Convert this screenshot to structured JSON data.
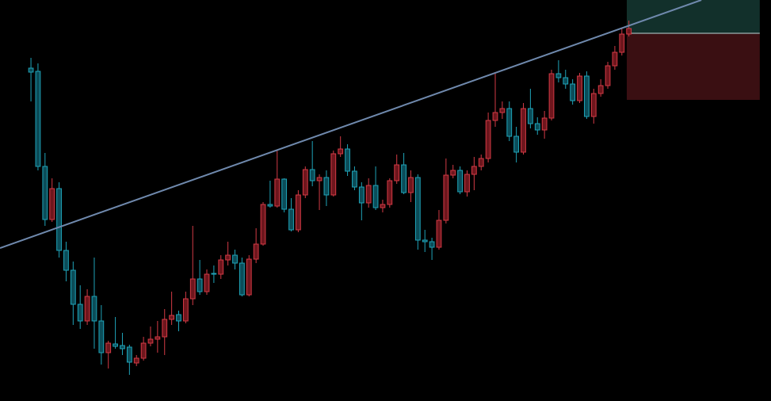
{
  "chart_data": {
    "type": "candlestick",
    "xlim": [
      -4.4,
      105.2
    ],
    "ylim": [
      0,
      506
    ],
    "up_color": "#d23a45",
    "up_fill": "#6e161d",
    "down_color": "#1fa3b8",
    "down_fill": "#0b4d59",
    "open": [
      420,
      416,
      296,
      229,
      268,
      190,
      165,
      122,
      101,
      132,
      101,
      61,
      72,
      70,
      68,
      48,
      54,
      73,
      78,
      81,
      103,
      109,
      101,
      129,
      154,
      138,
      161,
      160,
      178,
      184,
      174,
      134,
      179,
      198,
      248,
      246,
      280,
      242,
      216,
      260,
      292,
      278,
      282,
      260,
      312,
      318,
      290,
      270,
      250,
      272,
      244,
      248,
      278,
      298,
      263,
      282,
      203,
      201,
      194,
      228,
      285,
      291,
      264,
      286,
      296,
      306,
      354,
      364,
      369,
      334,
      314,
      369,
      350,
      342,
      357,
      413,
      408,
      400,
      379,
      410,
      359,
      388,
      398,
      423,
      440,
      463
    ],
    "high": [
      433,
      426,
      313,
      281,
      276,
      201,
      176,
      146,
      141,
      181,
      121,
      76,
      106,
      86,
      71,
      58,
      81,
      94,
      101,
      116,
      138,
      114,
      138,
      221,
      178,
      166,
      171,
      184,
      201,
      191,
      181,
      184,
      218,
      251,
      278,
      316,
      281,
      256,
      266,
      296,
      328,
      286,
      291,
      316,
      334,
      324,
      296,
      276,
      281,
      296,
      254,
      281,
      311,
      313,
      291,
      286,
      216,
      206,
      241,
      306,
      298,
      296,
      291,
      308,
      311,
      364,
      414,
      378,
      378,
      346,
      376,
      394,
      358,
      366,
      418,
      430,
      418,
      406,
      414,
      416,
      394,
      406,
      428,
      448,
      471,
      480
    ],
    "low": [
      378,
      291,
      221,
      226,
      181,
      151,
      96,
      91,
      96,
      66,
      46,
      41,
      66,
      58,
      33,
      44,
      51,
      69,
      61,
      58,
      96,
      88,
      98,
      121,
      134,
      134,
      149,
      154,
      171,
      166,
      132,
      132,
      174,
      196,
      244,
      244,
      238,
      214,
      213,
      256,
      271,
      241,
      246,
      258,
      308,
      284,
      266,
      228,
      244,
      241,
      238,
      244,
      274,
      261,
      251,
      191,
      188,
      178,
      191,
      224,
      281,
      261,
      258,
      266,
      291,
      301,
      346,
      356,
      328,
      301,
      311,
      344,
      336,
      331,
      354,
      402,
      394,
      374,
      376,
      356,
      350,
      384,
      394,
      418,
      436,
      460
    ],
    "close": [
      415,
      296,
      229,
      268,
      190,
      165,
      122,
      101,
      132,
      101,
      61,
      73,
      69,
      66,
      49,
      54,
      73,
      78,
      81,
      103,
      108,
      101,
      129,
      154,
      138,
      160,
      160,
      178,
      184,
      174,
      134,
      179,
      198,
      248,
      246,
      280,
      242,
      216,
      260,
      292,
      278,
      282,
      260,
      312,
      318,
      290,
      270,
      250,
      272,
      244,
      248,
      278,
      298,
      263,
      282,
      203,
      201,
      194,
      228,
      285,
      291,
      264,
      286,
      296,
      306,
      354,
      364,
      369,
      334,
      314,
      369,
      350,
      342,
      357,
      413,
      408,
      400,
      379,
      410,
      359,
      388,
      398,
      423,
      440,
      463,
      470
    ],
    "trendline": {
      "start": [
        -4.4,
        193
      ],
      "end": [
        95.3,
        506
      ],
      "color": "#6f89ad"
    },
    "position": {
      "x": [
        84.7,
        103.6
      ],
      "entry": 464,
      "target": 506,
      "stop": 380,
      "target_color": "#12302b",
      "stop_color": "#3a0f12",
      "entry_color": "#8a9a9a"
    }
  }
}
